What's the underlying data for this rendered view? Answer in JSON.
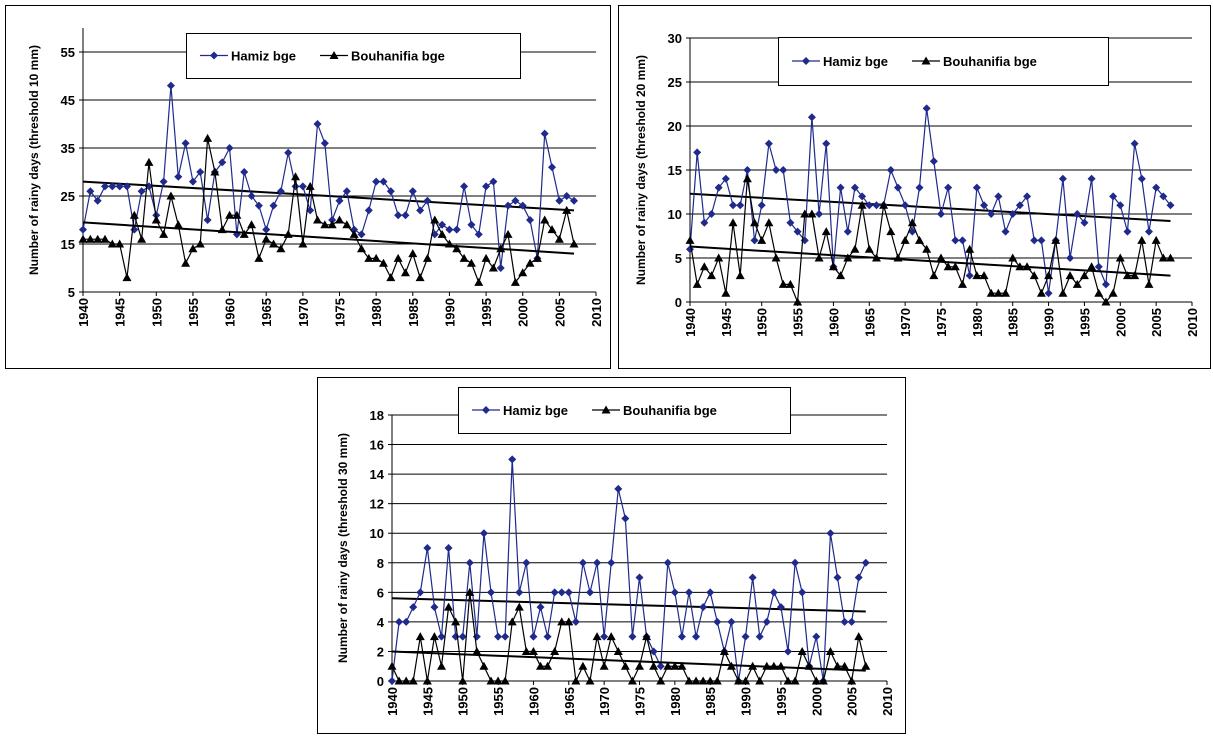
{
  "chart_data": [
    {
      "type": "line",
      "ylabel": "Number of rainy days (threshold 10 mm)",
      "x": [
        1940,
        1941,
        1942,
        1943,
        1944,
        1945,
        1946,
        1947,
        1948,
        1949,
        1950,
        1951,
        1952,
        1953,
        1954,
        1955,
        1956,
        1957,
        1958,
        1959,
        1960,
        1961,
        1962,
        1963,
        1964,
        1965,
        1966,
        1967,
        1968,
        1969,
        1970,
        1971,
        1972,
        1973,
        1974,
        1975,
        1976,
        1977,
        1978,
        1979,
        1980,
        1981,
        1982,
        1983,
        1984,
        1985,
        1986,
        1987,
        1988,
        1989,
        1990,
        1991,
        1992,
        1993,
        1994,
        1995,
        1996,
        1997,
        1998,
        1999,
        2000,
        2001,
        2002,
        2003,
        2004,
        2005,
        2006,
        2007
      ],
      "xlim": [
        1940,
        2010
      ],
      "xticks": [
        1940,
        1945,
        1950,
        1955,
        1960,
        1965,
        1970,
        1975,
        1980,
        1985,
        1990,
        1995,
        2000,
        2005,
        2010
      ],
      "ylim": [
        5,
        60
      ],
      "yticks": [
        5,
        15,
        25,
        35,
        45,
        55
      ],
      "grid": true,
      "series": [
        {
          "name": "Hamiz bge",
          "color": "#1f2a8c",
          "marker": "diamond",
          "values": [
            18,
            26,
            24,
            27,
            27,
            27,
            27,
            18,
            26,
            27,
            21,
            28,
            48,
            29,
            36,
            28,
            30,
            20,
            30,
            32,
            35,
            17,
            30,
            25,
            23,
            18,
            23,
            26,
            34,
            27,
            27,
            22,
            40,
            36,
            20,
            24,
            26,
            18,
            17,
            22,
            28,
            28,
            26,
            21,
            21,
            26,
            22,
            24,
            17,
            19,
            18,
            18,
            27,
            19,
            17,
            27,
            28,
            10,
            23,
            24,
            23,
            20,
            12,
            38,
            31,
            24,
            25,
            24
          ],
          "trend": {
            "x": [
              1940,
              2007
            ],
            "values": [
              28,
              22
            ]
          }
        },
        {
          "name": "Bouhanifia bge",
          "color": "#000000",
          "marker": "triangle",
          "values": [
            16,
            16,
            16,
            16,
            15,
            15,
            8,
            21,
            16,
            32,
            20,
            17,
            25,
            19,
            11,
            14,
            15,
            37,
            30,
            18,
            21,
            21,
            17,
            19,
            12,
            16,
            15,
            14,
            17,
            29,
            15,
            27,
            20,
            19,
            19,
            20,
            19,
            17,
            14,
            12,
            12,
            11,
            8,
            12,
            9,
            13,
            8,
            12,
            20,
            17,
            15,
            14,
            12,
            11,
            7,
            12,
            10,
            14,
            17,
            7,
            9,
            11,
            12,
            20,
            18,
            16,
            22,
            15
          ],
          "trend": {
            "x": [
              1940,
              2007
            ],
            "values": [
              19.5,
              13
            ]
          }
        }
      ]
    },
    {
      "type": "line",
      "ylabel": "Number of rainy days (threshold 20 mm)",
      "x": [
        1940,
        1941,
        1942,
        1943,
        1944,
        1945,
        1946,
        1947,
        1948,
        1949,
        1950,
        1951,
        1952,
        1953,
        1954,
        1955,
        1956,
        1957,
        1958,
        1959,
        1960,
        1961,
        1962,
        1963,
        1964,
        1965,
        1966,
        1967,
        1968,
        1969,
        1970,
        1971,
        1972,
        1973,
        1974,
        1975,
        1976,
        1977,
        1978,
        1979,
        1980,
        1981,
        1982,
        1983,
        1984,
        1985,
        1986,
        1987,
        1988,
        1989,
        1990,
        1991,
        1992,
        1993,
        1994,
        1995,
        1996,
        1997,
        1998,
        1999,
        2000,
        2001,
        2002,
        2003,
        2004,
        2005,
        2006,
        2007
      ],
      "xlim": [
        1940,
        2010
      ],
      "xticks": [
        1940,
        1945,
        1950,
        1955,
        1960,
        1965,
        1970,
        1975,
        1980,
        1985,
        1990,
        1995,
        2000,
        2005,
        2010
      ],
      "ylim": [
        0,
        30
      ],
      "yticks": [
        0,
        5,
        10,
        15,
        20,
        25,
        30
      ],
      "grid": true,
      "series": [
        {
          "name": "Hamiz bge",
          "color": "#1f2a8c",
          "marker": "diamond",
          "values": [
            6,
            17,
            9,
            10,
            13,
            14,
            11,
            11,
            15,
            7,
            11,
            18,
            15,
            15,
            9,
            8,
            7,
            21,
            10,
            18,
            4,
            13,
            8,
            13,
            12,
            11,
            11,
            11,
            15,
            13,
            11,
            8,
            13,
            22,
            16,
            10,
            13,
            7,
            7,
            3,
            13,
            11,
            10,
            12,
            8,
            10,
            11,
            12,
            7,
            7,
            1,
            7,
            14,
            5,
            10,
            9,
            14,
            4,
            2,
            12,
            11,
            8,
            18,
            14,
            8,
            13,
            12,
            11
          ],
          "trend": {
            "x": [
              1940,
              2007
            ],
            "values": [
              12.3,
              9.2
            ]
          }
        },
        {
          "name": "Bouhanifia bge",
          "color": "#000000",
          "marker": "triangle",
          "values": [
            7,
            2,
            4,
            3,
            5,
            1,
            9,
            3,
            14,
            9,
            7,
            9,
            5,
            2,
            2,
            0,
            10,
            10,
            5,
            8,
            4,
            3,
            5,
            6,
            11,
            6,
            5,
            11,
            8,
            5,
            7,
            9,
            7,
            6,
            3,
            5,
            4,
            4,
            2,
            6,
            3,
            3,
            1,
            1,
            1,
            5,
            4,
            4,
            3,
            1,
            3,
            7,
            1,
            3,
            2,
            3,
            4,
            1,
            0,
            1,
            5,
            3,
            3,
            7,
            2,
            7,
            5,
            5
          ],
          "trend": {
            "x": [
              1940,
              2007
            ],
            "values": [
              6.3,
              3
            ]
          }
        }
      ]
    },
    {
      "type": "line",
      "ylabel": "Number of rainy days (threshold 30 mm)",
      "x": [
        1940,
        1941,
        1942,
        1943,
        1944,
        1945,
        1946,
        1947,
        1948,
        1949,
        1950,
        1951,
        1952,
        1953,
        1954,
        1955,
        1956,
        1957,
        1958,
        1959,
        1960,
        1961,
        1962,
        1963,
        1964,
        1965,
        1966,
        1967,
        1968,
        1969,
        1970,
        1971,
        1972,
        1973,
        1974,
        1975,
        1976,
        1977,
        1978,
        1979,
        1980,
        1981,
        1982,
        1983,
        1984,
        1985,
        1986,
        1987,
        1988,
        1989,
        1990,
        1991,
        1992,
        1993,
        1994,
        1995,
        1996,
        1997,
        1998,
        1999,
        2000,
        2001,
        2002,
        2003,
        2004,
        2005,
        2006,
        2007
      ],
      "xlim": [
        1940,
        2010
      ],
      "xticks": [
        1940,
        1945,
        1950,
        1955,
        1960,
        1965,
        1970,
        1975,
        1980,
        1985,
        1990,
        1995,
        2000,
        2005,
        2010
      ],
      "ylim": [
        0,
        18
      ],
      "yticks": [
        0,
        2,
        4,
        6,
        8,
        10,
        12,
        14,
        16,
        18
      ],
      "grid": true,
      "series": [
        {
          "name": "Hamiz bge",
          "color": "#1f2a8c",
          "marker": "diamond",
          "values": [
            0,
            4,
            4,
            5,
            6,
            9,
            5,
            3,
            9,
            3,
            3,
            8,
            3,
            10,
            6,
            3,
            3,
            15,
            6,
            8,
            3,
            5,
            3,
            6,
            6,
            6,
            4,
            8,
            6,
            8,
            3,
            8,
            13,
            11,
            3,
            7,
            3,
            2,
            1,
            8,
            6,
            3,
            6,
            3,
            5,
            6,
            4,
            2,
            4,
            0,
            3,
            7,
            3,
            4,
            6,
            5,
            2,
            8,
            6,
            1,
            3,
            0,
            10,
            7,
            4,
            4,
            7,
            8
          ],
          "trend": {
            "x": [
              1940,
              2007
            ],
            "values": [
              5.6,
              4.7
            ]
          }
        },
        {
          "name": "Bouhanifia bge",
          "color": "#000000",
          "marker": "triangle",
          "values": [
            1,
            0,
            0,
            0,
            3,
            0,
            3,
            1,
            5,
            4,
            0,
            6,
            2,
            1,
            0,
            0,
            0,
            4,
            5,
            2,
            2,
            1,
            1,
            2,
            4,
            4,
            0,
            1,
            0,
            3,
            1,
            3,
            2,
            1,
            0,
            1,
            3,
            1,
            0,
            1,
            1,
            1,
            0,
            0,
            0,
            0,
            0,
            2,
            1,
            0,
            0,
            1,
            0,
            1,
            1,
            1,
            0,
            0,
            2,
            1,
            0,
            0,
            2,
            1,
            1,
            0,
            3,
            1
          ],
          "trend": {
            "x": [
              1940,
              2007
            ],
            "values": [
              2,
              0.7
            ]
          }
        }
      ]
    }
  ]
}
